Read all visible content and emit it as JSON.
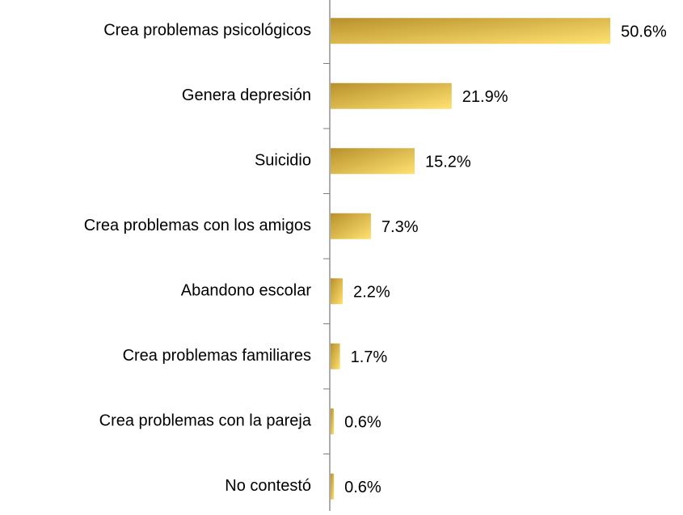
{
  "chart_data": {
    "type": "barh",
    "categories": [
      "Crea problemas psicológicos",
      "Genera depresión",
      "Suicidio",
      "Crea problemas con los amigos",
      "Abandono escolar",
      "Crea problemas familiares",
      "Crea problemas con la pareja",
      "No contestó"
    ],
    "values": [
      50.6,
      21.9,
      15.2,
      7.3,
      2.2,
      1.7,
      0.6,
      0.6
    ],
    "value_labels": [
      "50.6%",
      "21.9%",
      "15.2%",
      "7.3%",
      "2.2%",
      "1.7%",
      "0.6%",
      "0.6%"
    ],
    "color": [
      "#b8902c",
      "#ffe270"
    ]
  }
}
